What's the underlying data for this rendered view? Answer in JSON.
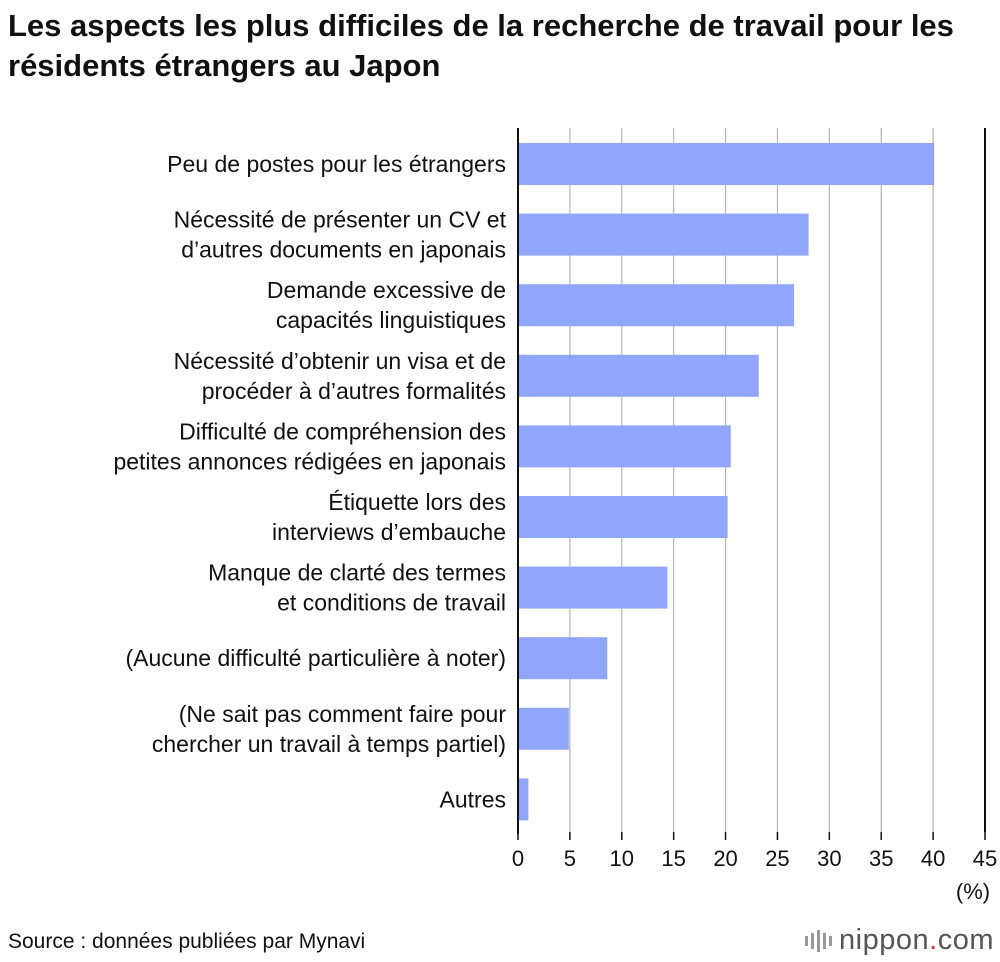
{
  "chart_data": {
    "type": "bar",
    "orientation": "horizontal",
    "title": "Les aspects les plus difficiles de la recherche de travail pour les résidents étrangers au Japon",
    "categories": [
      [
        "Peu de postes pour les étrangers"
      ],
      [
        "Nécessité de présenter un CV et",
        "d’autres documents en japonais"
      ],
      [
        "Demande excessive de",
        "capacités linguistiques"
      ],
      [
        "Nécessité d’obtenir un visa et de",
        "procéder à d’autres formalités"
      ],
      [
        "Difficulté de compréhension des",
        "petites annonces rédigées en japonais"
      ],
      [
        "Étiquette lors des",
        "interviews d’embauche"
      ],
      [
        "Manque de clarté des termes",
        "et conditions de travail"
      ],
      [
        "(Aucune difficulté particulière à noter)"
      ],
      [
        "(Ne sait pas comment faire pour",
        "chercher un travail à temps partiel)"
      ],
      [
        "Autres"
      ]
    ],
    "values": [
      40.1,
      28.0,
      26.6,
      23.2,
      20.5,
      20.2,
      14.4,
      8.6,
      4.9,
      1.0
    ],
    "xlim": [
      0,
      45
    ],
    "xticks": [
      0,
      5,
      10,
      15,
      20,
      25,
      30,
      35,
      40,
      45
    ],
    "xlabel": "(%)",
    "ylabel": "",
    "grid": true,
    "bar_color": "#90a6fb"
  },
  "source": "Source : données publiées par Mynavi",
  "logo": {
    "name": "nippon",
    "suffix": ".com",
    "dot": ".",
    "tld": "com"
  }
}
